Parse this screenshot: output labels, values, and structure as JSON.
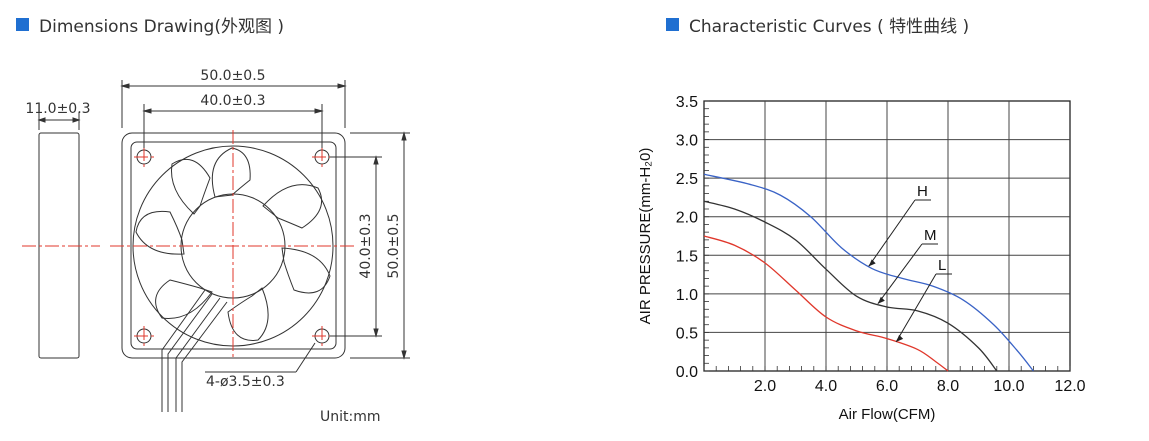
{
  "headings": {
    "left": "Dimensions Drawing(外观图 )",
    "right": "Characteristic Curves ( 特性曲线 )",
    "accent_color": "#1f6fd1"
  },
  "dimensions": {
    "overall_width": "50.0±0.5",
    "hole_spacing_width": "40.0±0.3",
    "thickness": "11.0±0.3",
    "hole_spacing_height": "40.0±0.3",
    "overall_height": "50.0±0.5",
    "holes": "4-ø3.5±0.3",
    "unit": "Unit:mm"
  },
  "chart_data": {
    "type": "line",
    "xlabel": "Air Flow(CFM)",
    "ylabel": "AIR PRESSURE(mm-H₂0)",
    "xlim": [
      0,
      12
    ],
    "ylim": [
      0,
      3.5
    ],
    "x_ticks": [
      "2.0",
      "4.0",
      "6.0",
      "8.0",
      "10.0",
      "12.0"
    ],
    "y_ticks": [
      "0.0",
      "0.5",
      "1.0",
      "1.5",
      "2.0",
      "2.5",
      "3.0",
      "3.5"
    ],
    "grid": true,
    "series": [
      {
        "name": "H",
        "color": "#3a63c6",
        "points": [
          [
            0,
            2.55
          ],
          [
            1.5,
            2.42
          ],
          [
            2.5,
            2.28
          ],
          [
            3.5,
            2.0
          ],
          [
            4.5,
            1.6
          ],
          [
            5.5,
            1.33
          ],
          [
            6.5,
            1.2
          ],
          [
            7.5,
            1.1
          ],
          [
            8.5,
            0.92
          ],
          [
            9.5,
            0.6
          ],
          [
            10.3,
            0.25
          ],
          [
            10.8,
            0.0
          ]
        ]
      },
      {
        "name": "M",
        "color": "#333333",
        "points": [
          [
            0,
            2.2
          ],
          [
            1.0,
            2.1
          ],
          [
            2.0,
            1.93
          ],
          [
            3.0,
            1.7
          ],
          [
            4.0,
            1.32
          ],
          [
            5.0,
            0.97
          ],
          [
            6.0,
            0.83
          ],
          [
            7.0,
            0.78
          ],
          [
            8.0,
            0.62
          ],
          [
            9.0,
            0.3
          ],
          [
            9.6,
            0.0
          ]
        ]
      },
      {
        "name": "L",
        "color": "#e0372b",
        "points": [
          [
            0,
            1.75
          ],
          [
            1.0,
            1.63
          ],
          [
            2.0,
            1.4
          ],
          [
            3.0,
            1.05
          ],
          [
            4.0,
            0.7
          ],
          [
            5.0,
            0.52
          ],
          [
            6.0,
            0.42
          ],
          [
            7.0,
            0.28
          ],
          [
            7.6,
            0.12
          ],
          [
            8.0,
            0.0
          ]
        ]
      }
    ]
  }
}
